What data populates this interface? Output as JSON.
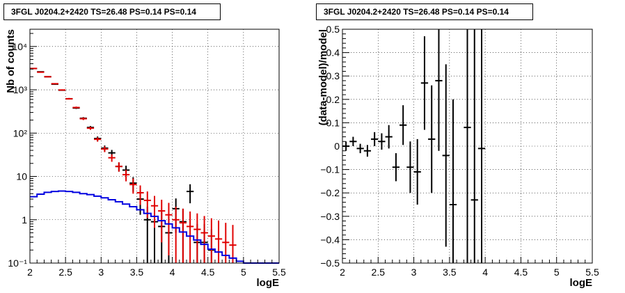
{
  "titles": {
    "left": "3FGL J0204.2+2420 TS=26.48 PS=0.14 PS=0.14",
    "right": "3FGL J0204.2+2420 TS=26.48 PS=0.14 PS=0.14"
  },
  "chart_data": [
    {
      "type": "line",
      "panel": "counts",
      "xlabel": "logE",
      "ylabel": "Nb of counts",
      "xlim": [
        2.0,
        5.5
      ],
      "ylim": [
        0.1,
        25000
      ],
      "y_scale": "log",
      "grid": true,
      "x_ticks": [
        "2",
        "2.5",
        "3",
        "3.5",
        "4",
        "4.5",
        "5",
        "5.5"
      ],
      "y_ticks": [
        {
          "value": 0.1,
          "label": "10⁻¹"
        },
        {
          "value": 1,
          "label": "1"
        },
        {
          "value": 10,
          "label": "10"
        },
        {
          "value": 100,
          "label": "10²"
        },
        {
          "value": 1000,
          "label": "10³"
        },
        {
          "value": 10000,
          "label": "10⁴"
        }
      ],
      "bin_width": 0.1,
      "series": [
        {
          "color": "#000000",
          "style": "errorbar",
          "x": [
            2.05,
            2.15,
            2.25,
            2.35,
            2.45,
            2.55,
            2.65,
            2.75,
            2.85,
            2.95,
            3.05,
            3.15,
            3.25,
            3.35,
            3.45,
            3.55,
            3.65,
            3.75,
            3.85,
            3.95,
            4.05,
            4.15,
            4.25,
            4.35,
            4.45,
            4.55
          ],
          "y": [
            3100,
            2600,
            2000,
            1350,
            980,
            620,
            380,
            220,
            135,
            75,
            45,
            35,
            17,
            14,
            7,
            3,
            1,
            0.9,
            0.7,
            0.5,
            1.8,
            0.9,
            4.5,
            0.3,
            0.3,
            0.2
          ],
          "yerr": [
            55,
            50,
            44,
            36,
            31,
            24,
            19,
            14,
            11,
            8.6,
            6.7,
            5.9,
            4.1,
            3.7,
            2.6,
            1.7,
            1.0,
            0.9,
            0.8,
            0.7,
            1.3,
            0.9,
            2.1,
            0.5,
            0.5,
            0.4
          ]
        },
        {
          "color": "#e00000",
          "style": "errorbar",
          "x": [
            2.05,
            2.15,
            2.25,
            2.35,
            2.45,
            2.55,
            2.65,
            2.75,
            2.85,
            2.95,
            3.05,
            3.15,
            3.25,
            3.35,
            3.45,
            3.55,
            3.65,
            3.75,
            3.85,
            3.95,
            4.05,
            4.15,
            4.25,
            4.35,
            4.45,
            4.55,
            4.65,
            4.75,
            4.85
          ],
          "y": [
            3100,
            2550,
            2000,
            1380,
            990,
            620,
            390,
            215,
            130,
            72,
            43,
            27,
            17,
            11,
            6.5,
            4.2,
            2.8,
            2.1,
            1.6,
            1.3,
            1.0,
            0.85,
            0.7,
            0.6,
            0.5,
            0.42,
            0.36,
            0.3,
            0.26
          ],
          "yerr": [
            55,
            50,
            44,
            37,
            31,
            25,
            20,
            15,
            11,
            8.5,
            6.6,
            5.2,
            4.1,
            3.3,
            2.5,
            2.0,
            1.7,
            1.45,
            1.3,
            1.15,
            1.0,
            0.95,
            0.85,
            0.8,
            0.72,
            0.66,
            0.6,
            0.55,
            0.5
          ]
        },
        {
          "color": "#0000e0",
          "style": "step",
          "edges": [
            2.0,
            2.1,
            2.2,
            2.3,
            2.4,
            2.5,
            2.6,
            2.7,
            2.8,
            2.9,
            3.0,
            3.1,
            3.2,
            3.3,
            3.4,
            3.5,
            3.6,
            3.7,
            3.8,
            3.9,
            4.0,
            4.1,
            4.2,
            4.3,
            4.4,
            4.5,
            4.6,
            4.7,
            4.8,
            4.9,
            5.0,
            5.1,
            5.2,
            5.3,
            5.4,
            5.5
          ],
          "y": [
            3.4,
            3.9,
            4.3,
            4.5,
            4.6,
            4.5,
            4.3,
            4.0,
            3.8,
            3.5,
            3.2,
            2.9,
            2.6,
            2.3,
            2.0,
            1.7,
            1.4,
            1.2,
            0.95,
            0.8,
            0.65,
            0.52,
            0.42,
            0.34,
            0.27,
            0.21,
            0.18,
            0.15,
            0.13,
            0.11,
            0.1,
            0.1,
            0.1,
            0.1,
            0.1
          ]
        }
      ]
    },
    {
      "type": "scatter",
      "panel": "residuals",
      "xlabel": "logE",
      "ylabel": "(data-model)/model",
      "xlim": [
        2.0,
        5.5
      ],
      "ylim": [
        -0.5,
        0.5
      ],
      "grid": true,
      "x_ticks": [
        "2",
        "2.5",
        "3",
        "3.5",
        "4",
        "4.5",
        "5",
        "5.5"
      ],
      "y_ticks": [
        "−0.5",
        "−0.4",
        "−0.3",
        "−0.2",
        "−0.1",
        "0",
        "0.1",
        "0.2",
        "0.3",
        "0.4",
        "0.5"
      ],
      "bin_width": 0.1,
      "series": [
        {
          "color": "#000000",
          "style": "errorbar",
          "x": [
            2.05,
            2.15,
            2.25,
            2.35,
            2.45,
            2.55,
            2.65,
            2.75,
            2.85,
            2.95,
            3.05,
            3.15,
            3.25,
            3.35,
            3.45,
            3.55,
            3.75,
            3.85,
            3.95
          ],
          "y": [
            0.0,
            0.02,
            -0.01,
            -0.02,
            0.03,
            0.02,
            0.04,
            -0.09,
            0.09,
            -0.09,
            -0.11,
            0.27,
            0.03,
            0.28,
            -0.04,
            -0.25,
            0.08,
            -0.23,
            -0.01
          ],
          "yerr": [
            0.02,
            0.02,
            0.02,
            0.025,
            0.03,
            0.035,
            0.05,
            0.06,
            0.085,
            0.11,
            0.14,
            0.2,
            0.23,
            0.3,
            0.39,
            0.45,
            0.7,
            0.8,
            1.0
          ]
        }
      ]
    }
  ]
}
